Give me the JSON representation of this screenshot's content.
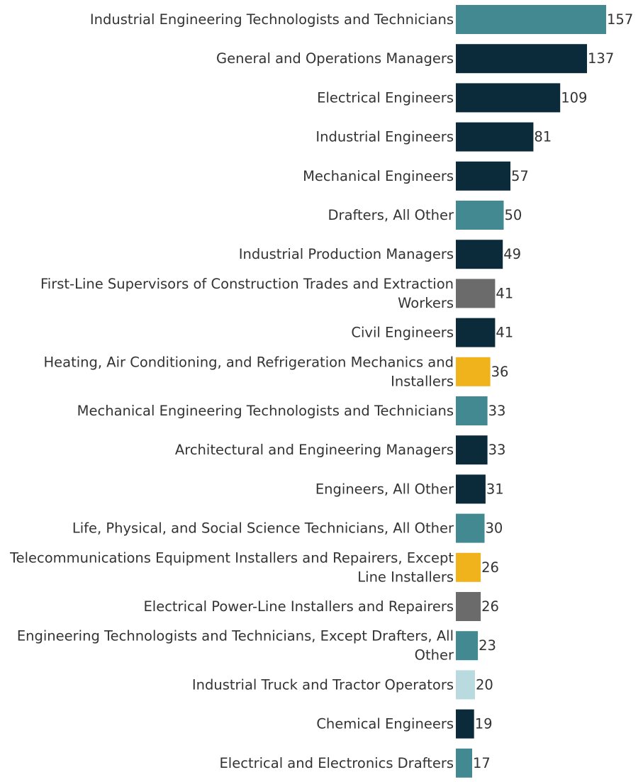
{
  "chart_data": {
    "type": "bar",
    "orientation": "horizontal",
    "title": "",
    "xlabel": "",
    "ylabel": "",
    "xlim": [
      0,
      157
    ],
    "grid": false,
    "legend": "none",
    "categories": [
      "Industrial Engineering Technologists and Technicians",
      "General and Operations Managers",
      "Electrical Engineers",
      "Industrial Engineers",
      "Mechanical Engineers",
      "Drafters, All Other",
      "Industrial Production Managers",
      "First-Line Supervisors of Construction Trades and Extraction Workers",
      "Civil Engineers",
      "Heating, Air Conditioning, and Refrigeration Mechanics and Installers",
      "Mechanical Engineering Technologists and Technicians",
      "Architectural and Engineering Managers",
      "Engineers, All Other",
      "Life, Physical, and Social Science Technicians, All Other",
      "Telecommunications Equipment Installers and Repairers, Except Line Installers",
      "Electrical Power-Line Installers and Repairers",
      "Engineering Technologists and Technicians, Except Drafters, All Other",
      "Industrial Truck and Tractor Operators",
      "Chemical Engineers",
      "Electrical and Electronics Drafters"
    ],
    "label_lines": [
      [
        "Industrial Engineering Technologists and Technicians"
      ],
      [
        "General and Operations Managers"
      ],
      [
        "Electrical Engineers"
      ],
      [
        "Industrial Engineers"
      ],
      [
        "Mechanical Engineers"
      ],
      [
        "Drafters, All Other"
      ],
      [
        "Industrial Production Managers"
      ],
      [
        "First-Line Supervisors of Construction Trades and Extraction",
        "Workers"
      ],
      [
        "Civil Engineers"
      ],
      [
        "Heating, Air Conditioning, and Refrigeration Mechanics and",
        "Installers"
      ],
      [
        "Mechanical Engineering Technologists and Technicians"
      ],
      [
        "Architectural and Engineering Managers"
      ],
      [
        "Engineers, All Other"
      ],
      [
        "Life, Physical, and Social Science Technicians, All Other"
      ],
      [
        "Telecommunications Equipment Installers and Repairers, Except",
        "Line Installers"
      ],
      [
        "Electrical Power-Line Installers and Repairers"
      ],
      [
        "Engineering Technologists and Technicians, Except Drafters, All",
        "Other"
      ],
      [
        "Industrial Truck and Tractor Operators"
      ],
      [
        "Chemical Engineers"
      ],
      [
        "Electrical and Electronics Drafters"
      ]
    ],
    "values": [
      157,
      137,
      109,
      81,
      57,
      50,
      49,
      41,
      41,
      36,
      33,
      33,
      31,
      30,
      26,
      26,
      23,
      20,
      19,
      17
    ],
    "bar_colors": [
      "#428991",
      "#0b2b3b",
      "#0b2b3b",
      "#0b2b3b",
      "#0b2b3b",
      "#428991",
      "#0b2b3b",
      "#6b6b6b",
      "#0b2b3b",
      "#f1b31c",
      "#428991",
      "#0b2b3b",
      "#0b2b3b",
      "#428991",
      "#f1b31c",
      "#6b6b6b",
      "#428991",
      "#b9dade",
      "#0b2b3b",
      "#428991"
    ]
  }
}
